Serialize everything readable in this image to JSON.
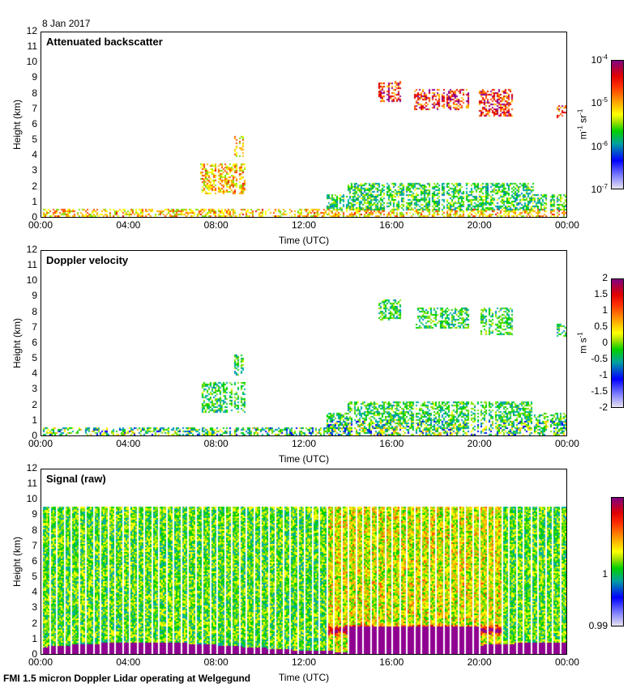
{
  "date": "8 Jan 2017",
  "footer": "FMI 1.5 micron Doppler Lidar operating at Welgegund",
  "chart_data": [
    {
      "type": "heatmap",
      "title": "Attenuated backscatter",
      "xlabel": "Time (UTC)",
      "ylabel": "Height (km)",
      "xticks": [
        "00:00",
        "04:00",
        "08:00",
        "12:00",
        "16:00",
        "20:00",
        "00:00"
      ],
      "xlim": [
        0,
        24
      ],
      "yticks": [
        "0",
        "1",
        "2",
        "3",
        "4",
        "5",
        "6",
        "7",
        "8",
        "9",
        "10",
        "11",
        "12"
      ],
      "ylim": [
        0,
        12
      ],
      "colorbar": {
        "label": "m-1 sr-1",
        "unit_base": "m",
        "unit_exp1": "-1",
        "unit_sr": "sr",
        "unit_exp2": "-1",
        "ticks": [
          {
            "base": "10",
            "exp": "-4"
          },
          {
            "base": "10",
            "exp": "-5"
          },
          {
            "base": "10",
            "exp": "-6"
          },
          {
            "base": "10",
            "exp": "-7"
          }
        ],
        "range": [
          1e-07,
          0.0001
        ],
        "scale": "log"
      },
      "features": [
        {
          "t": [
            0,
            24
          ],
          "h": [
            0,
            0.6
          ],
          "level": "high"
        },
        {
          "t": [
            7.2,
            9.3
          ],
          "h": [
            1.5,
            3.5
          ],
          "level": "high"
        },
        {
          "t": [
            8.8,
            9.2
          ],
          "h": [
            4,
            5.3
          ],
          "level": "high"
        },
        {
          "t": [
            15.4,
            16.4
          ],
          "h": [
            7.5,
            8.9
          ],
          "level": "very high"
        },
        {
          "t": [
            17,
            19.5
          ],
          "h": [
            7,
            8.4
          ],
          "level": "very high"
        },
        {
          "t": [
            20,
            21.5
          ],
          "h": [
            6.6,
            8.4
          ],
          "level": "very high"
        },
        {
          "t": [
            23.5,
            24
          ],
          "h": [
            6.5,
            7.3
          ],
          "level": "very high"
        },
        {
          "t": [
            14,
            22.5
          ],
          "h": [
            1.5,
            2.3
          ],
          "level": "medium"
        },
        {
          "t": [
            13,
            24
          ],
          "h": [
            0.5,
            1.5
          ],
          "level": "medium"
        }
      ]
    },
    {
      "type": "heatmap",
      "title": "Doppler velocity",
      "xlabel": "Time (UTC)",
      "ylabel": "Height (km)",
      "xticks": [
        "00:00",
        "04:00",
        "08:00",
        "12:00",
        "16:00",
        "20:00",
        "00:00"
      ],
      "xlim": [
        0,
        24
      ],
      "yticks": [
        "0",
        "1",
        "2",
        "3",
        "4",
        "5",
        "6",
        "7",
        "8",
        "9",
        "10",
        "11",
        "12"
      ],
      "ylim": [
        0,
        12
      ],
      "colorbar": {
        "unit_base": "m s",
        "unit_exp": "-1",
        "ticks": [
          "2",
          "1.5",
          "1",
          "0.5",
          "0",
          "-0.5",
          "-1",
          "-1.5",
          "-2"
        ],
        "range": [
          -2,
          2
        ]
      }
    },
    {
      "type": "heatmap",
      "title": "Signal (raw)",
      "xlabel": "Time (UTC)",
      "ylabel": "Height (km)",
      "xticks": [
        "00:00",
        "04:00",
        "08:00",
        "12:00",
        "16:00",
        "20:00",
        "00:00"
      ],
      "xlim": [
        0,
        24
      ],
      "yticks": [
        "0",
        "1",
        "2",
        "3",
        "4",
        "5",
        "6",
        "7",
        "8",
        "9",
        "10",
        "11",
        "12"
      ],
      "ylim": [
        0,
        12
      ],
      "max_height_km": 9.6,
      "colorbar": {
        "ticks": [
          "1",
          "0.99"
        ],
        "range": [
          0.99,
          1.01
        ]
      }
    }
  ]
}
